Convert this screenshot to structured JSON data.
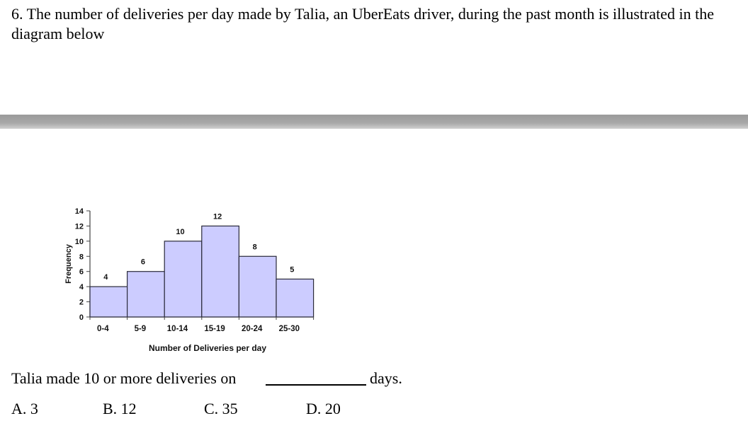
{
  "question": {
    "text": "6. The number of deliveries per day made by Talia, an UberEats driver, during the past month is illustrated in the diagram below"
  },
  "chart_data": {
    "type": "bar",
    "categories": [
      "0-4",
      "5-9",
      "10-14",
      "15-19",
      "20-24",
      "25-30"
    ],
    "values": [
      4,
      6,
      10,
      12,
      8,
      5
    ],
    "data_labels": [
      "4",
      "6",
      "10",
      "12",
      "8",
      "5"
    ],
    "xlabel": "Number of Deliveries per day",
    "ylabel": "Frequency",
    "ylim": [
      0,
      14
    ],
    "yticks": [
      0,
      2,
      4,
      6,
      8,
      10,
      12,
      14
    ],
    "bar_color": "#ccccff",
    "bar_edge_color": "#2a2a3a",
    "grid": false
  },
  "answer": {
    "prefix": "Talia made 10 or more deliveries on",
    "suffix": "days."
  },
  "options": [
    "A. 3",
    "B. 12",
    "C. 35",
    "D. 20"
  ]
}
